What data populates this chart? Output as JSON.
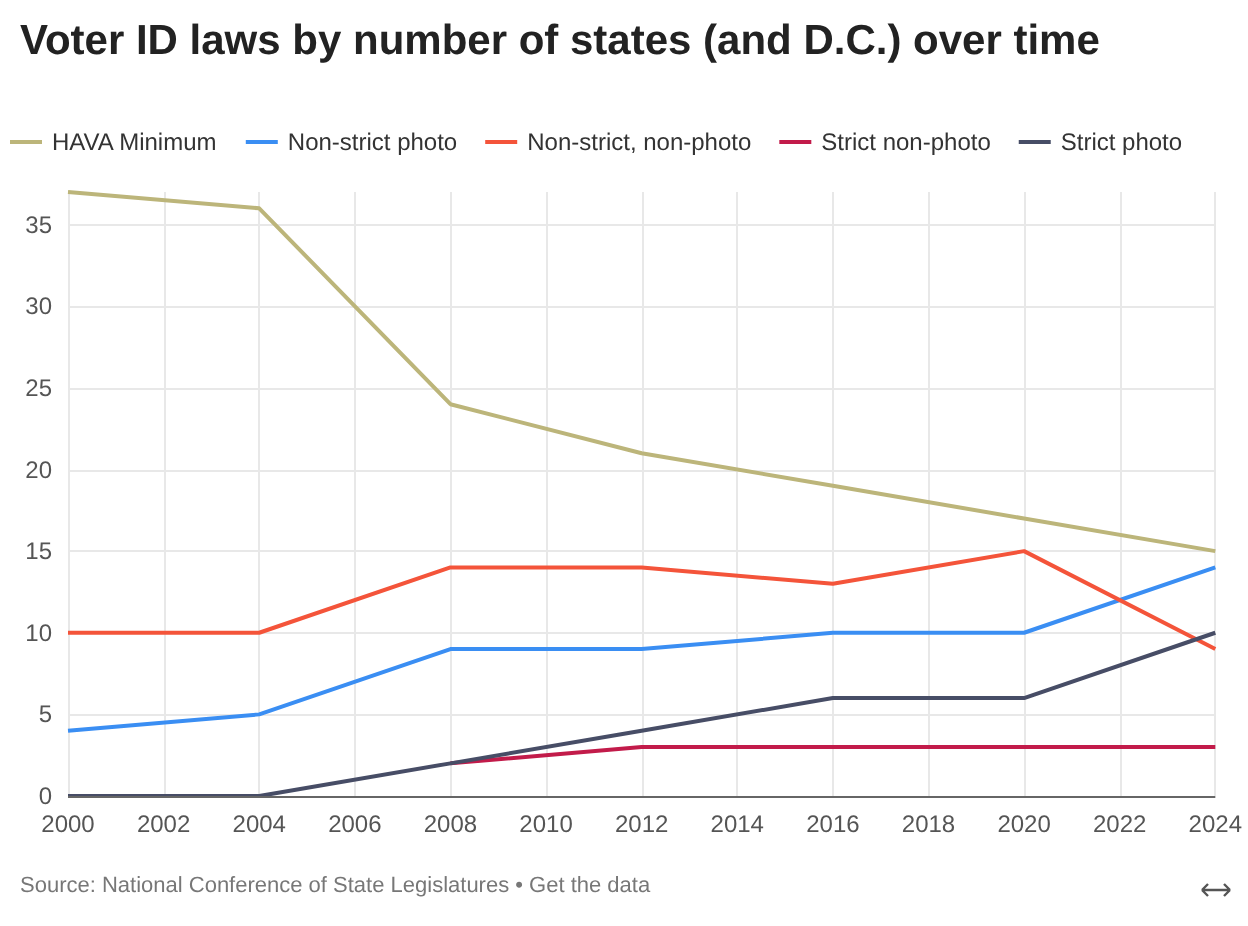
{
  "chart_data": {
    "type": "line",
    "title": "Voter ID laws by number of states (and D.C.) over time",
    "x": [
      2000,
      2004,
      2008,
      2012,
      2016,
      2020,
      2024
    ],
    "series": [
      {
        "name": "HAVA Minimum",
        "color": "#bcb57a",
        "values": [
          37,
          36,
          24,
          21,
          19,
          17,
          15
        ]
      },
      {
        "name": "Non-strict photo",
        "color": "#3a8ef3",
        "values": [
          4,
          5,
          9,
          9,
          10,
          10,
          14
        ]
      },
      {
        "name": "Non-strict, non-photo",
        "color": "#f4543a",
        "values": [
          10,
          10,
          14,
          14,
          13,
          15,
          9
        ]
      },
      {
        "name": "Strict non-photo",
        "color": "#c21b4a",
        "values": [
          null,
          null,
          2,
          3,
          3,
          3,
          3
        ]
      },
      {
        "name": "Strict photo",
        "color": "#474d66",
        "values": [
          0,
          0,
          2,
          4,
          6,
          6,
          10
        ]
      }
    ],
    "xlim": [
      2000,
      2024
    ],
    "xticks": [
      2000,
      2002,
      2004,
      2006,
      2008,
      2010,
      2012,
      2014,
      2016,
      2018,
      2020,
      2022,
      2024
    ],
    "ylim": [
      0,
      37
    ],
    "yticks": [
      0,
      5,
      10,
      15,
      20,
      25,
      30,
      35
    ],
    "grid": true,
    "legend": "top left",
    "marker": "none",
    "line_style": "solid",
    "annotations": [
      "Source: National Conference of State Legislatures • Get the data"
    ]
  }
}
